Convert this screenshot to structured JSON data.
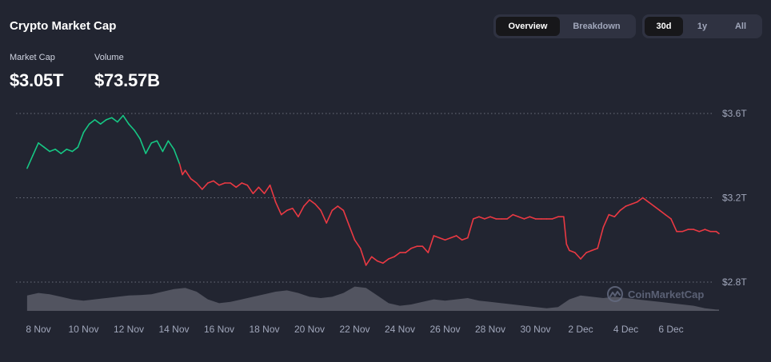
{
  "header": {
    "title": "Crypto Market Cap"
  },
  "view_tabs": [
    {
      "label": "Overview",
      "active": true
    },
    {
      "label": "Breakdown",
      "active": false
    }
  ],
  "range_tabs": [
    {
      "label": "30d",
      "active": true
    },
    {
      "label": "1y",
      "active": false
    },
    {
      "label": "All",
      "active": false
    }
  ],
  "stats": {
    "market_cap": {
      "label": "Market Cap",
      "value": "$3.05T"
    },
    "volume": {
      "label": "Volume",
      "value": "$73.57B"
    }
  },
  "watermark": {
    "text": "CoinMarketCap",
    "icon": "coinmarketcap-logo-icon"
  },
  "colors": {
    "up": "#16c784",
    "down": "#ea3943",
    "background": "#222531",
    "volume": "#5a5d68"
  },
  "chart_data": {
    "type": "line",
    "x_unit": "date",
    "x_tick_labels": [
      "8 Nov",
      "10 Nov",
      "12 Nov",
      "14 Nov",
      "16 Nov",
      "18 Nov",
      "20 Nov",
      "22 Nov",
      "24 Nov",
      "26 Nov",
      "28 Nov",
      "30 Nov",
      "2 Dec",
      "4 Dec",
      "6 Dec"
    ],
    "y_tick_labels": [
      "$3.6T",
      "$3.2T",
      "$2.8T"
    ],
    "ylim": [
      2.8,
      3.6
    ],
    "grid": true,
    "color_rule": "green above starting value, red below",
    "series": [
      {
        "unit": "trillion USD",
        "points": [
          [
            "2024-11-07T12:00",
            3.34
          ],
          [
            "2024-11-07T18:00",
            3.4
          ],
          [
            "2024-11-08T00:00",
            3.46
          ],
          [
            "2024-11-08T06:00",
            3.44
          ],
          [
            "2024-11-08T12:00",
            3.42
          ],
          [
            "2024-11-08T18:00",
            3.43
          ],
          [
            "2024-11-09T00:00",
            3.41
          ],
          [
            "2024-11-09T06:00",
            3.43
          ],
          [
            "2024-11-09T12:00",
            3.42
          ],
          [
            "2024-11-09T18:00",
            3.44
          ],
          [
            "2024-11-10T00:00",
            3.51
          ],
          [
            "2024-11-10T06:00",
            3.55
          ],
          [
            "2024-11-10T12:00",
            3.57
          ],
          [
            "2024-11-10T18:00",
            3.55
          ],
          [
            "2024-11-11T00:00",
            3.57
          ],
          [
            "2024-11-11T06:00",
            3.58
          ],
          [
            "2024-11-11T12:00",
            3.56
          ],
          [
            "2024-11-11T18:00",
            3.59
          ],
          [
            "2024-11-12T00:00",
            3.55
          ],
          [
            "2024-11-12T06:00",
            3.52
          ],
          [
            "2024-11-12T12:00",
            3.48
          ],
          [
            "2024-11-12T18:00",
            3.41
          ],
          [
            "2024-11-13T00:00",
            3.46
          ],
          [
            "2024-11-13T06:00",
            3.47
          ],
          [
            "2024-11-13T12:00",
            3.42
          ],
          [
            "2024-11-13T18:00",
            3.47
          ],
          [
            "2024-11-14T00:00",
            3.43
          ],
          [
            "2024-11-14T06:00",
            3.36
          ],
          [
            "2024-11-14T09:00",
            3.31
          ],
          [
            "2024-11-14T12:00",
            3.33
          ],
          [
            "2024-11-14T18:00",
            3.29
          ],
          [
            "2024-11-15T00:00",
            3.27
          ],
          [
            "2024-11-15T06:00",
            3.24
          ],
          [
            "2024-11-15T12:00",
            3.27
          ],
          [
            "2024-11-15T18:00",
            3.28
          ],
          [
            "2024-11-16T00:00",
            3.26
          ],
          [
            "2024-11-16T06:00",
            3.27
          ],
          [
            "2024-11-16T12:00",
            3.27
          ],
          [
            "2024-11-16T18:00",
            3.25
          ],
          [
            "2024-11-17T00:00",
            3.27
          ],
          [
            "2024-11-17T06:00",
            3.26
          ],
          [
            "2024-11-17T12:00",
            3.22
          ],
          [
            "2024-11-17T18:00",
            3.25
          ],
          [
            "2024-11-18T00:00",
            3.22
          ],
          [
            "2024-11-18T06:00",
            3.26
          ],
          [
            "2024-11-18T12:00",
            3.18
          ],
          [
            "2024-11-18T18:00",
            3.12
          ],
          [
            "2024-11-19T00:00",
            3.14
          ],
          [
            "2024-11-19T06:00",
            3.15
          ],
          [
            "2024-11-19T12:00",
            3.11
          ],
          [
            "2024-11-19T18:00",
            3.16
          ],
          [
            "2024-11-20T00:00",
            3.19
          ],
          [
            "2024-11-20T06:00",
            3.17
          ],
          [
            "2024-11-20T12:00",
            3.14
          ],
          [
            "2024-11-20T18:00",
            3.08
          ],
          [
            "2024-11-21T00:00",
            3.14
          ],
          [
            "2024-11-21T06:00",
            3.16
          ],
          [
            "2024-11-21T12:00",
            3.14
          ],
          [
            "2024-11-21T18:00",
            3.07
          ],
          [
            "2024-11-22T00:00",
            3.0
          ],
          [
            "2024-11-22T06:00",
            2.96
          ],
          [
            "2024-11-22T12:00",
            2.88
          ],
          [
            "2024-11-22T18:00",
            2.92
          ],
          [
            "2024-11-23T00:00",
            2.9
          ],
          [
            "2024-11-23T06:00",
            2.89
          ],
          [
            "2024-11-23T12:00",
            2.91
          ],
          [
            "2024-11-23T18:00",
            2.92
          ],
          [
            "2024-11-24T00:00",
            2.94
          ],
          [
            "2024-11-24T06:00",
            2.94
          ],
          [
            "2024-11-24T12:00",
            2.96
          ],
          [
            "2024-11-24T18:00",
            2.97
          ],
          [
            "2024-11-25T00:00",
            2.97
          ],
          [
            "2024-11-25T06:00",
            2.94
          ],
          [
            "2024-11-25T12:00",
            3.02
          ],
          [
            "2024-11-25T18:00",
            3.01
          ],
          [
            "2024-11-26T00:00",
            3.0
          ],
          [
            "2024-11-26T06:00",
            3.01
          ],
          [
            "2024-11-26T12:00",
            3.02
          ],
          [
            "2024-11-26T18:00",
            3.0
          ],
          [
            "2024-11-27T00:00",
            3.01
          ],
          [
            "2024-11-27T06:00",
            3.1
          ],
          [
            "2024-11-27T12:00",
            3.11
          ],
          [
            "2024-11-27T18:00",
            3.1
          ],
          [
            "2024-11-28T00:00",
            3.11
          ],
          [
            "2024-11-28T06:00",
            3.1
          ],
          [
            "2024-11-28T12:00",
            3.1
          ],
          [
            "2024-11-28T18:00",
            3.1
          ],
          [
            "2024-11-29T00:00",
            3.12
          ],
          [
            "2024-11-29T06:00",
            3.11
          ],
          [
            "2024-11-29T12:00",
            3.1
          ],
          [
            "2024-11-29T18:00",
            3.11
          ],
          [
            "2024-11-30T00:00",
            3.1
          ],
          [
            "2024-11-30T06:00",
            3.1
          ],
          [
            "2024-11-30T12:00",
            3.1
          ],
          [
            "2024-11-30T18:00",
            3.1
          ],
          [
            "2024-12-01T00:00",
            3.11
          ],
          [
            "2024-12-01T06:00",
            3.11
          ],
          [
            "2024-12-01T09:00",
            2.98
          ],
          [
            "2024-12-01T12:00",
            2.95
          ],
          [
            "2024-12-01T18:00",
            2.94
          ],
          [
            "2024-12-02T00:00",
            2.91
          ],
          [
            "2024-12-02T06:00",
            2.94
          ],
          [
            "2024-12-02T12:00",
            2.95
          ],
          [
            "2024-12-02T18:00",
            2.96
          ],
          [
            "2024-12-03T00:00",
            3.06
          ],
          [
            "2024-12-03T06:00",
            3.12
          ],
          [
            "2024-12-03T12:00",
            3.11
          ],
          [
            "2024-12-03T18:00",
            3.14
          ],
          [
            "2024-12-04T00:00",
            3.16
          ],
          [
            "2024-12-04T06:00",
            3.17
          ],
          [
            "2024-12-04T12:00",
            3.18
          ],
          [
            "2024-12-04T18:00",
            3.2
          ],
          [
            "2024-12-05T00:00",
            3.18
          ],
          [
            "2024-12-05T06:00",
            3.16
          ],
          [
            "2024-12-05T12:00",
            3.14
          ],
          [
            "2024-12-05T18:00",
            3.12
          ],
          [
            "2024-12-06T00:00",
            3.1
          ],
          [
            "2024-12-06T06:00",
            3.04
          ],
          [
            "2024-12-06T12:00",
            3.04
          ],
          [
            "2024-12-06T18:00",
            3.05
          ],
          [
            "2024-12-07T00:00",
            3.05
          ],
          [
            "2024-12-07T06:00",
            3.04
          ],
          [
            "2024-12-07T12:00",
            3.05
          ],
          [
            "2024-12-07T18:00",
            3.04
          ],
          [
            "2024-12-08T00:00",
            3.04
          ],
          [
            "2024-12-08T03:00",
            3.03
          ]
        ]
      },
      {
        "unit": "relative volume (0-1)",
        "points": [
          [
            "2024-11-07T12:00",
            0.6
          ],
          [
            "2024-11-08T00:00",
            0.7
          ],
          [
            "2024-11-08T12:00",
            0.65
          ],
          [
            "2024-11-09T00:00",
            0.55
          ],
          [
            "2024-11-09T12:00",
            0.45
          ],
          [
            "2024-11-10T00:00",
            0.4
          ],
          [
            "2024-11-10T12:00",
            0.45
          ],
          [
            "2024-11-11T00:00",
            0.5
          ],
          [
            "2024-11-11T12:00",
            0.55
          ],
          [
            "2024-11-12T00:00",
            0.6
          ],
          [
            "2024-11-12T12:00",
            0.62
          ],
          [
            "2024-11-13T00:00",
            0.65
          ],
          [
            "2024-11-13T12:00",
            0.75
          ],
          [
            "2024-11-14T00:00",
            0.85
          ],
          [
            "2024-11-14T12:00",
            0.9
          ],
          [
            "2024-11-15T00:00",
            0.75
          ],
          [
            "2024-11-15T12:00",
            0.45
          ],
          [
            "2024-11-16T00:00",
            0.3
          ],
          [
            "2024-11-16T12:00",
            0.35
          ],
          [
            "2024-11-17T00:00",
            0.45
          ],
          [
            "2024-11-17T12:00",
            0.55
          ],
          [
            "2024-11-18T00:00",
            0.65
          ],
          [
            "2024-11-18T12:00",
            0.75
          ],
          [
            "2024-11-19T00:00",
            0.8
          ],
          [
            "2024-11-19T12:00",
            0.7
          ],
          [
            "2024-11-20T00:00",
            0.55
          ],
          [
            "2024-11-20T12:00",
            0.5
          ],
          [
            "2024-11-21T00:00",
            0.55
          ],
          [
            "2024-11-21T12:00",
            0.7
          ],
          [
            "2024-11-22T00:00",
            0.95
          ],
          [
            "2024-11-22T12:00",
            0.9
          ],
          [
            "2024-11-23T00:00",
            0.6
          ],
          [
            "2024-11-23T12:00",
            0.3
          ],
          [
            "2024-11-24T00:00",
            0.2
          ],
          [
            "2024-11-24T12:00",
            0.25
          ],
          [
            "2024-11-25T00:00",
            0.35
          ],
          [
            "2024-11-25T12:00",
            0.45
          ],
          [
            "2024-11-26T00:00",
            0.4
          ],
          [
            "2024-11-26T12:00",
            0.45
          ],
          [
            "2024-11-27T00:00",
            0.5
          ],
          [
            "2024-11-27T12:00",
            0.4
          ],
          [
            "2024-11-28T00:00",
            0.35
          ],
          [
            "2024-11-28T12:00",
            0.3
          ],
          [
            "2024-11-29T00:00",
            0.25
          ],
          [
            "2024-11-29T12:00",
            0.2
          ],
          [
            "2024-11-30T00:00",
            0.15
          ],
          [
            "2024-11-30T12:00",
            0.1
          ],
          [
            "2024-12-01T00:00",
            0.15
          ],
          [
            "2024-12-01T12:00",
            0.45
          ],
          [
            "2024-12-02T00:00",
            0.6
          ],
          [
            "2024-12-02T12:00",
            0.55
          ],
          [
            "2024-12-03T00:00",
            0.5
          ],
          [
            "2024-12-03T12:00",
            0.55
          ],
          [
            "2024-12-04T00:00",
            0.5
          ],
          [
            "2024-12-04T12:00",
            0.45
          ],
          [
            "2024-12-05T00:00",
            0.4
          ],
          [
            "2024-12-05T12:00",
            0.35
          ],
          [
            "2024-12-06T00:00",
            0.3
          ],
          [
            "2024-12-06T12:00",
            0.25
          ],
          [
            "2024-12-07T00:00",
            0.2
          ],
          [
            "2024-12-07T12:00",
            0.1
          ],
          [
            "2024-12-08T00:00",
            0.05
          ],
          [
            "2024-12-08T03:00",
            0.05
          ]
        ]
      }
    ]
  }
}
